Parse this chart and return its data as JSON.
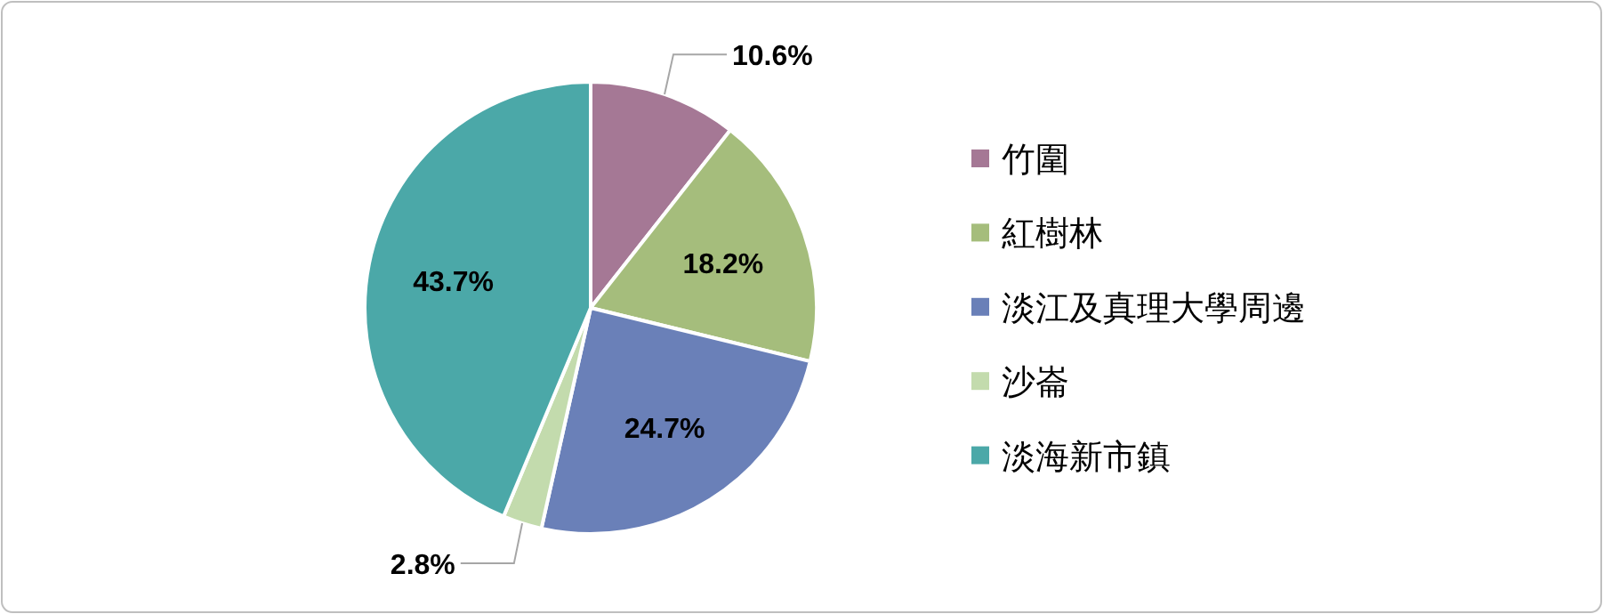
{
  "chart_data": {
    "type": "pie",
    "categories": [
      "竹圍",
      "紅樹林",
      "淡江及真理大學周邊",
      "沙崙",
      "淡海新市鎮"
    ],
    "values": [
      10.6,
      18.2,
      24.7,
      2.8,
      43.7
    ],
    "colors": [
      "#a57895",
      "#a5bd7c",
      "#6a80b8",
      "#c3dbad",
      "#4ba8a8"
    ],
    "value_labels": [
      "10.6%",
      "18.2%",
      "24.7%",
      "2.8%",
      "43.7%"
    ],
    "legend": "right"
  }
}
